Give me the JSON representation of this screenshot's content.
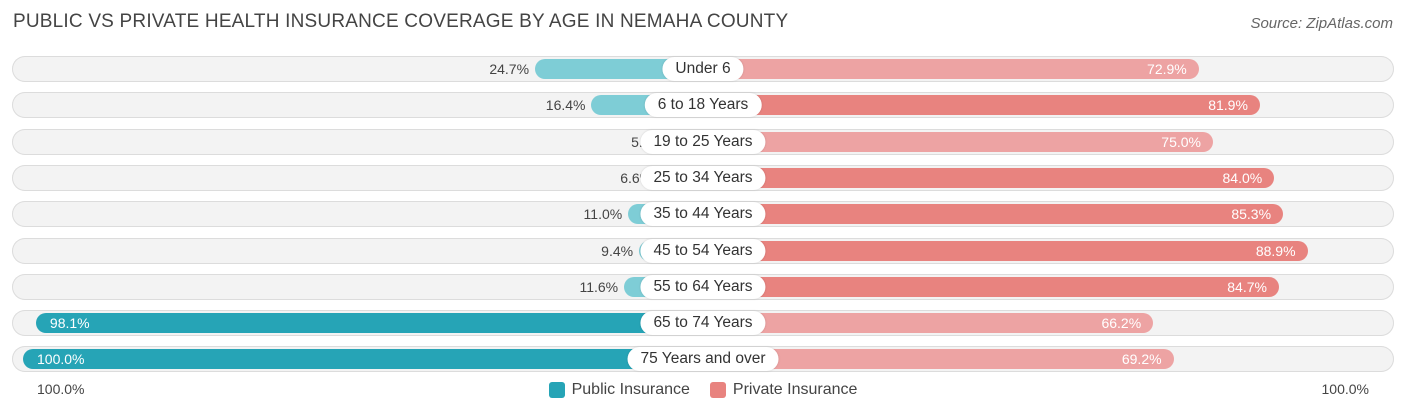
{
  "header": {
    "title": "PUBLIC VS PRIVATE HEALTH INSURANCE COVERAGE BY AGE IN NEMAHA COUNTY",
    "source": "Source: ZipAtlas.com"
  },
  "colors": {
    "public": "#7ecdd6",
    "public_strong": "#26a4b6",
    "private": "#eda3a3",
    "private_strong": "#e8837f"
  },
  "legend": {
    "public_label": "Public Insurance",
    "private_label": "Private Insurance"
  },
  "axis": {
    "left_label": "100.0%",
    "right_label": "100.0%"
  },
  "chart_data": {
    "type": "bar",
    "orientation": "horizontal-diverging",
    "title": "PUBLIC VS PRIVATE HEALTH INSURANCE COVERAGE BY AGE IN NEMAHA COUNTY",
    "categories": [
      "Under 6",
      "6 to 18 Years",
      "19 to 25 Years",
      "25 to 34 Years",
      "35 to 44 Years",
      "45 to 54 Years",
      "55 to 64 Years",
      "65 to 74 Years",
      "75 Years and over"
    ],
    "series": [
      {
        "name": "Public Insurance",
        "values": [
          24.7,
          16.4,
          5.0,
          6.6,
          11.0,
          9.4,
          11.6,
          98.1,
          100.0
        ],
        "labels": [
          "24.7%",
          "16.4%",
          "5.0%",
          "6.6%",
          "11.0%",
          "9.4%",
          "11.6%",
          "98.1%",
          "100.0%"
        ]
      },
      {
        "name": "Private Insurance",
        "values": [
          72.9,
          81.9,
          75.0,
          84.0,
          85.3,
          88.9,
          84.7,
          66.2,
          69.2
        ],
        "labels": [
          "72.9%",
          "81.9%",
          "75.0%",
          "84.0%",
          "85.3%",
          "88.9%",
          "84.7%",
          "66.2%",
          "69.2%"
        ]
      }
    ],
    "xlim": [
      -100,
      100
    ],
    "legend_position": "bottom-center"
  }
}
